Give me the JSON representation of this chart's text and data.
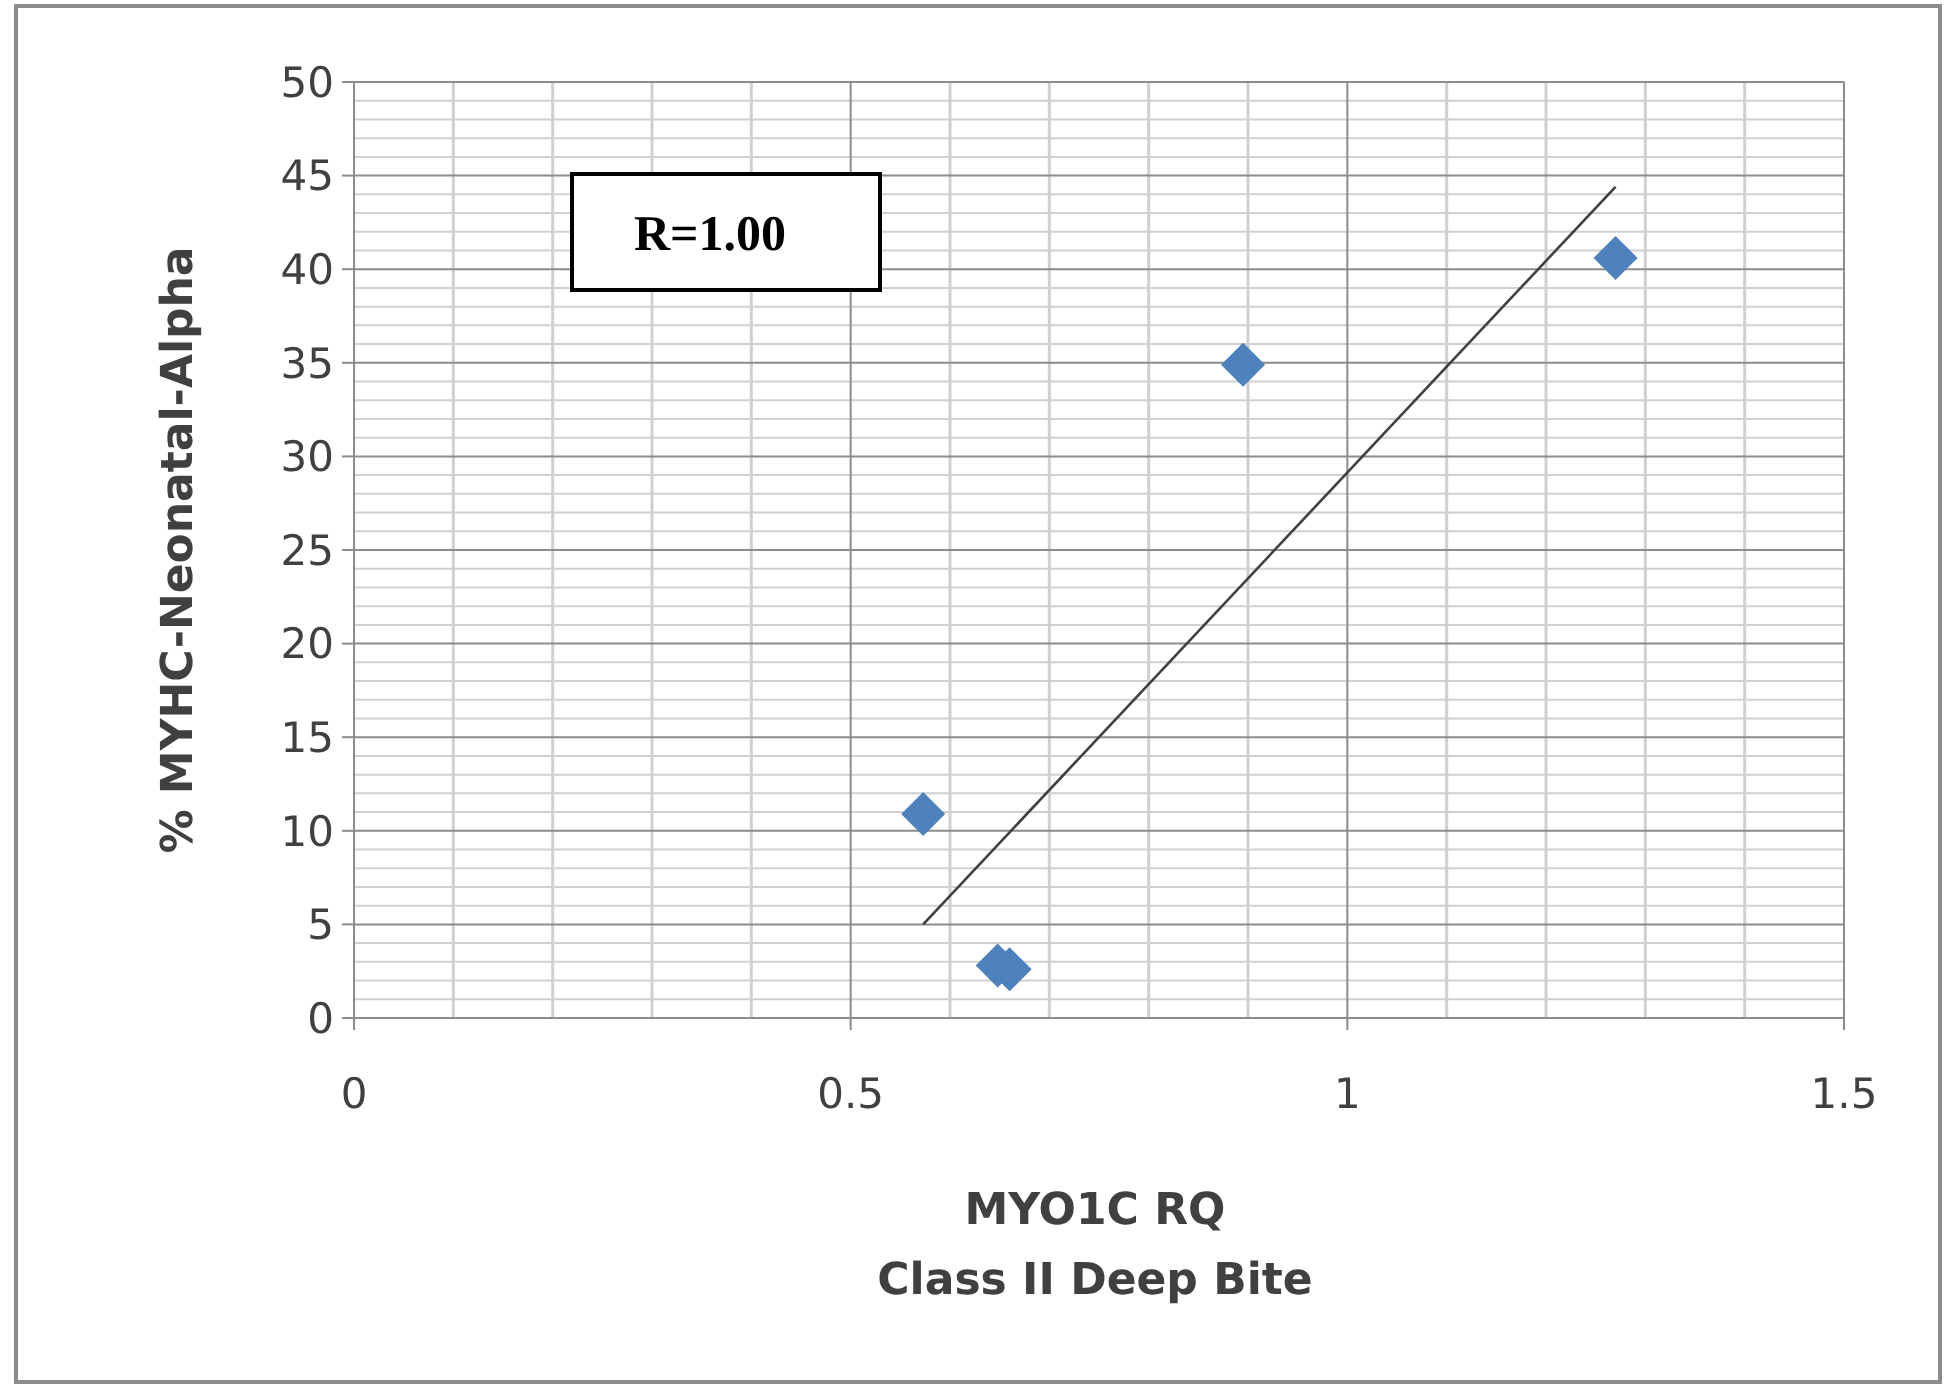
{
  "chart_data": {
    "type": "scatter",
    "xlabel": "MYO1C RQ\nClass II Deep Bite",
    "ylabel": "% MYHC-Neonatal-Alpha",
    "annotations": [
      "R=1.00"
    ],
    "xlim": [
      0,
      1.5
    ],
    "xticks": [
      0,
      0.5,
      1,
      1.5
    ],
    "ylim": [
      0,
      50
    ],
    "yticks": [
      0,
      5,
      10,
      15,
      20,
      25,
      30,
      35,
      40,
      45,
      50
    ],
    "grid": true,
    "series": [
      {
        "color": "#4f81bd",
        "marker": "diamond",
        "x": [
          0.573,
          0.648,
          0.66,
          0.895,
          1.27
        ],
        "values": [
          10.9,
          2.8,
          2.6,
          34.9,
          40.6
        ]
      },
      {
        "type": "line",
        "color": "#404040",
        "x": [
          0.573,
          1.27
        ],
        "values": [
          5.0,
          44.4
        ]
      }
    ]
  }
}
